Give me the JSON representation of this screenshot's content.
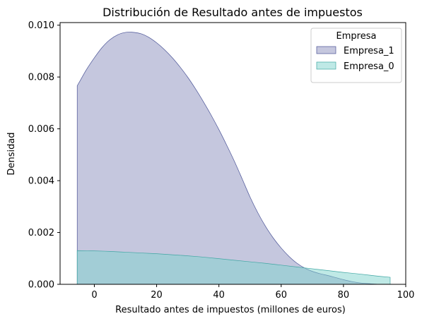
{
  "chart_data": {
    "type": "area",
    "title": "Distribución de Resultado antes de impuestos",
    "xlabel": "Resultado antes de impuestos (millones de euros)",
    "ylabel": "Densidad",
    "xlim": [
      -11,
      100
    ],
    "ylim": [
      0,
      0.0101
    ],
    "xticks": [
      0,
      20,
      40,
      60,
      80,
      100
    ],
    "xtick_labels": [
      "0",
      "20",
      "40",
      "60",
      "80",
      "100"
    ],
    "yticks": [
      0,
      0.002,
      0.004,
      0.006,
      0.008,
      0.01
    ],
    "ytick_labels": [
      "0.000",
      "0.002",
      "0.004",
      "0.006",
      "0.008",
      "0.010"
    ],
    "grid": false,
    "legend": {
      "title": "Empresa",
      "placement": "top-right"
    },
    "series": [
      {
        "name": "Empresa_1",
        "color": "#8b8fbe",
        "edge_color": "#4a5396",
        "fill_opacity": 0.5,
        "points": [
          [
            -5.5,
            0.00766
          ],
          [
            -4.5,
            0.00787
          ],
          [
            -2.5,
            0.00829
          ],
          [
            0,
            0.00874
          ],
          [
            2.5,
            0.00914
          ],
          [
            5,
            0.00944
          ],
          [
            7.5,
            0.00963
          ],
          [
            10,
            0.00972
          ],
          [
            12,
            0.00973
          ],
          [
            15,
            0.00967
          ],
          [
            17.5,
            0.00953
          ],
          [
            20,
            0.00932
          ],
          [
            22.5,
            0.00906
          ],
          [
            25,
            0.00875
          ],
          [
            27.5,
            0.00839
          ],
          [
            30,
            0.00799
          ],
          [
            32.5,
            0.00754
          ],
          [
            35,
            0.00705
          ],
          [
            37.5,
            0.00653
          ],
          [
            40,
            0.00597
          ],
          [
            42.5,
            0.00537
          ],
          [
            45,
            0.00474
          ],
          [
            47.5,
            0.00406
          ],
          [
            50,
            0.00337
          ],
          [
            52.5,
            0.00276
          ],
          [
            55,
            0.00223
          ],
          [
            57.5,
            0.00178
          ],
          [
            60,
            0.0014
          ],
          [
            62.5,
            0.00108
          ],
          [
            65,
            0.00082
          ],
          [
            67.5,
            0.00063
          ],
          [
            70,
            0.0005
          ],
          [
            72.5,
            0.00041
          ],
          [
            75,
            0.00034
          ],
          [
            77.5,
            0.00026
          ],
          [
            80,
            0.00018
          ],
          [
            82.5,
            0.00011
          ],
          [
            85,
            6e-05
          ],
          [
            87.5,
            3e-05
          ],
          [
            90,
            1e-05
          ],
          [
            91.5,
            0
          ]
        ]
      },
      {
        "name": "Empresa_0",
        "color": "#7fd3cd",
        "edge_color": "#3fa6a3",
        "fill_opacity": 0.5,
        "points": [
          [
            -5.5,
            0.0013
          ],
          [
            0,
            0.00129
          ],
          [
            5,
            0.00127
          ],
          [
            10,
            0.00124
          ],
          [
            15,
            0.00121
          ],
          [
            20,
            0.00118
          ],
          [
            25,
            0.00114
          ],
          [
            30,
            0.0011
          ],
          [
            35,
            0.00105
          ],
          [
            40,
            0.00099
          ],
          [
            45,
            0.00093
          ],
          [
            50,
            0.00087
          ],
          [
            55,
            0.00081
          ],
          [
            60,
            0.00074
          ],
          [
            65,
            0.00067
          ],
          [
            70,
            0.0006
          ],
          [
            75,
            0.00053
          ],
          [
            80,
            0.00046
          ],
          [
            85,
            0.0004
          ],
          [
            90,
            0.00033
          ],
          [
            95,
            0.00027
          ]
        ]
      }
    ]
  }
}
